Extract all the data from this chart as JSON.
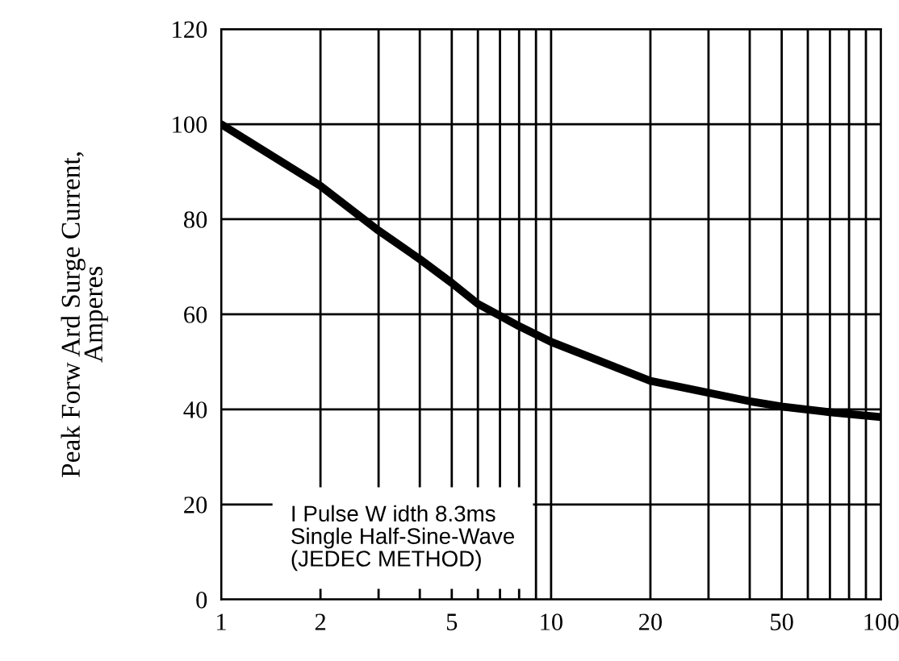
{
  "chart_data": {
    "type": "line",
    "ylabel": "Peak Forw Ard Surge Current,\nAmperes",
    "annotations": [
      "I Pulse W idth 8.3ms\nSingle Half-Sine-Wave\n(JEDEC METHOD)"
    ],
    "x": [
      1,
      2,
      3,
      4,
      5,
      6,
      7,
      8,
      10,
      20,
      30,
      40,
      50,
      70,
      100
    ],
    "series": [
      {
        "color": "#000000",
        "values": [
          100,
          87,
          77.6,
          71.6,
          66.6,
          62.2,
          59.7,
          57.5,
          54.2,
          46,
          43.5,
          41.7,
          40.6,
          39.4,
          38.4
        ]
      }
    ],
    "log": "x",
    "xlim": [
      1,
      100
    ],
    "xticks": [
      1,
      2,
      {
        "value": 3,
        "label": null
      },
      {
        "value": 4,
        "label": null
      },
      5,
      {
        "value": 6,
        "label": null
      },
      {
        "value": 7,
        "label": null
      },
      {
        "value": 8,
        "label": null
      },
      {
        "value": 9,
        "label": null
      },
      10,
      20,
      {
        "value": 30,
        "label": null
      },
      {
        "value": 40,
        "label": null
      },
      50,
      {
        "value": 60,
        "label": null
      },
      {
        "value": 70,
        "label": null
      },
      {
        "value": 80,
        "label": null
      },
      {
        "value": 90,
        "label": null
      },
      100
    ],
    "ylim": [
      0,
      120
    ],
    "yticks": [
      0,
      20,
      40,
      60,
      80,
      100,
      120
    ],
    "grid": true,
    "line_style": "solid",
    "marker": "none"
  }
}
